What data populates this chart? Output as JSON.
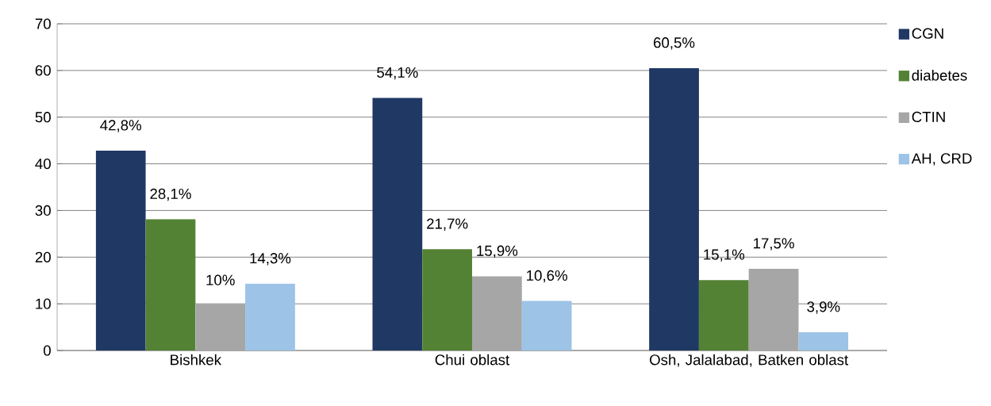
{
  "chart_data": {
    "type": "bar",
    "categories": [
      "Bishkek",
      "Chui oblast",
      "Osh, Jalalabad, Batken oblast"
    ],
    "series": [
      {
        "name": "CGN",
        "color": "#203864",
        "values": [
          42.8,
          54.1,
          60.5
        ],
        "value_labels": [
          "42,8%",
          "54,1%",
          "60,5%"
        ]
      },
      {
        "name": "diabetes",
        "color": "#548235",
        "values": [
          28.1,
          21.7,
          15.1
        ],
        "value_labels": [
          "28,1%",
          "21,7%",
          "15,1%"
        ]
      },
      {
        "name": "CTIN",
        "color": "#a6a6a6",
        "values": [
          10,
          15.9,
          17.5
        ],
        "value_labels": [
          "10%",
          "15,9%",
          "17,5%"
        ]
      },
      {
        "name": "AH, CRD",
        "color": "#9dc3e6",
        "values": [
          14.3,
          10.6,
          3.9
        ],
        "value_labels": [
          "14,3%",
          "10,6%",
          "3,9%"
        ]
      }
    ],
    "ylim": [
      0,
      70
    ],
    "yticks": [
      0,
      10,
      20,
      30,
      40,
      50,
      60,
      70
    ],
    "grid": "y",
    "legend": "right"
  }
}
